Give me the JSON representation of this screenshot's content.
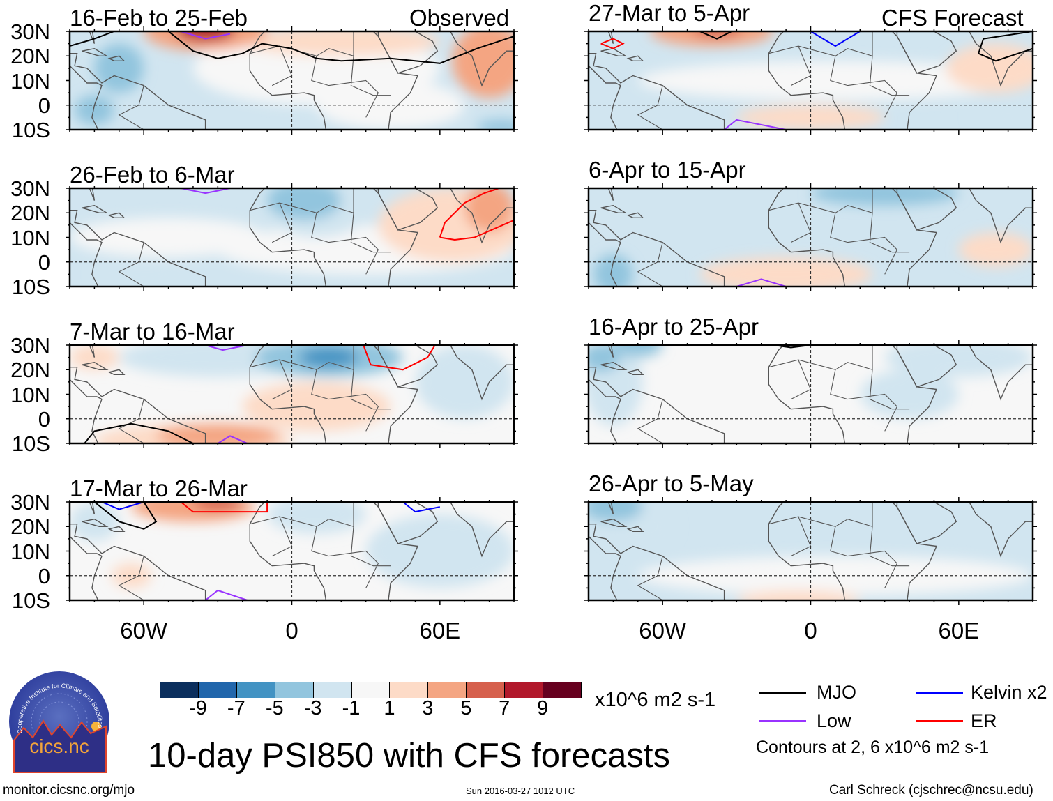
{
  "header": {
    "observed_label": "Observed",
    "forecast_label": "CFS Forecast"
  },
  "axes": {
    "lat_labels": [
      "30N",
      "20N",
      "10N",
      "0",
      "10S"
    ],
    "lon_labels": [
      "60W",
      "0",
      "60E"
    ]
  },
  "palette": [
    "#0b2f5e",
    "#2166ac",
    "#4393c3",
    "#92c5de",
    "#d1e5f0",
    "#f7f7f7",
    "#fddbc7",
    "#f4a582",
    "#d6604d",
    "#b2182b",
    "#67001f"
  ],
  "contour_colors": {
    "MJO": "#000000",
    "Kelvin": "#0000ff",
    "Low": "#9933ff",
    "ER": "#ff0000"
  },
  "maps": [
    {
      "title": "16-Feb to 25-Feb",
      "base": -2,
      "blobs": [
        [
          10,
          15,
          50,
          15,
          0
        ],
        [
          40,
          0,
          30,
          10,
          0
        ],
        [
          20,
          26,
          40,
          6,
          2
        ],
        [
          80,
          18,
          15,
          15,
          4
        ],
        [
          -35,
          30,
          25,
          8,
          4
        ],
        [
          -35,
          31,
          12,
          5,
          8
        ],
        [
          -70,
          15,
          10,
          10,
          -4
        ],
        [
          85,
          -9,
          10,
          3,
          -5
        ],
        [
          -80,
          -2,
          8,
          6,
          -4
        ]
      ],
      "contours": [
        [
          "MJO",
          [
            [
              -90,
              24
            ],
            [
              -80,
              27
            ],
            [
              -72,
              30
            ]
          ]
        ],
        [
          "MJO",
          [
            [
              -50,
              30
            ],
            [
              -40,
              22
            ],
            [
              -30,
              19
            ],
            [
              -20,
              21
            ],
            [
              -12,
              25
            ],
            [
              0,
              23
            ],
            [
              10,
              19
            ],
            [
              20,
              18
            ],
            [
              40,
              19
            ],
            [
              60,
              17
            ],
            [
              75,
              23
            ],
            [
              90,
              28
            ]
          ]
        ],
        [
          "Low",
          [
            [
              -45,
              30
            ],
            [
              -35,
              27
            ],
            [
              -25,
              29
            ]
          ]
        ]
      ]
    },
    {
      "title": "26-Feb to 6-Mar",
      "base": -2,
      "blobs": [
        [
          30,
          5,
          60,
          10,
          0
        ],
        [
          -50,
          10,
          40,
          8,
          0
        ],
        [
          5,
          25,
          15,
          8,
          -5
        ],
        [
          10,
          20,
          20,
          10,
          -3
        ],
        [
          65,
          15,
          30,
          15,
          2
        ],
        [
          80,
          22,
          10,
          10,
          4
        ],
        [
          -60,
          -5,
          20,
          6,
          -3
        ]
      ],
      "contours": [
        [
          "Low",
          [
            [
              -45,
              30
            ],
            [
              -35,
              28
            ],
            [
              -25,
              30
            ]
          ]
        ],
        [
          "ER",
          [
            [
              60,
              10
            ],
            [
              62,
              16
            ],
            [
              70,
              24
            ],
            [
              78,
              28
            ],
            [
              84,
              30
            ]
          ]
        ],
        [
          "ER",
          [
            [
              60,
              10
            ],
            [
              66,
              9
            ],
            [
              74,
              10
            ],
            [
              90,
              17
            ]
          ]
        ]
      ]
    },
    {
      "title": "7-Mar to 16-Mar",
      "base": 0,
      "blobs": [
        [
          -30,
          25,
          40,
          8,
          -3
        ],
        [
          15,
          25,
          30,
          8,
          -4
        ],
        [
          15,
          25,
          12,
          4,
          -7
        ],
        [
          -40,
          -9,
          40,
          7,
          2
        ],
        [
          -30,
          -7,
          25,
          5,
          4
        ],
        [
          10,
          5,
          30,
          10,
          2
        ],
        [
          70,
          15,
          20,
          15,
          -2
        ],
        [
          -80,
          25,
          10,
          5,
          2
        ]
      ],
      "contours": [
        [
          "Low",
          [
            [
              -35,
              30
            ],
            [
              -28,
              28
            ],
            [
              -18,
              30
            ]
          ]
        ],
        [
          "ER",
          [
            [
              29,
              30
            ],
            [
              32,
              22
            ],
            [
              45,
              20
            ],
            [
              55,
              25
            ],
            [
              58,
              30
            ]
          ]
        ],
        [
          "MJO",
          [
            [
              -84,
              -10
            ],
            [
              -80,
              -5
            ],
            [
              -65,
              -2
            ],
            [
              -50,
              -5
            ],
            [
              -40,
              -10
            ]
          ]
        ],
        [
          "Low",
          [
            [
              -30,
              -10
            ],
            [
              -25,
              -7
            ],
            [
              -18,
              -10
            ]
          ]
        ]
      ]
    },
    {
      "title": "17-Mar to 26-Mar",
      "base": 0,
      "blobs": [
        [
          -40,
          28,
          25,
          6,
          4
        ],
        [
          -30,
          30,
          10,
          3,
          6
        ],
        [
          10,
          25,
          20,
          8,
          -3
        ],
        [
          60,
          10,
          30,
          15,
          -2
        ],
        [
          -65,
          0,
          8,
          5,
          2
        ],
        [
          -80,
          22,
          10,
          8,
          -2
        ]
      ],
      "contours": [
        [
          "Kelvin",
          [
            [
              -77,
              30
            ],
            [
              -70,
              27
            ],
            [
              -60,
              30
            ]
          ]
        ],
        [
          "MJO",
          [
            [
              -80,
              30
            ],
            [
              -70,
              22
            ],
            [
              -60,
              19
            ],
            [
              -55,
              22
            ],
            [
              -60,
              30
            ]
          ]
        ],
        [
          "ER",
          [
            [
              -45,
              30
            ],
            [
              -40,
              26
            ],
            [
              -10,
              26
            ],
            [
              -10,
              30
            ]
          ]
        ],
        [
          "Kelvin",
          [
            [
              45,
              30
            ],
            [
              50,
              26
            ],
            [
              60,
              28
            ]
          ]
        ],
        [
          "Low",
          [
            [
              -35,
              -10
            ],
            [
              -30,
              -6
            ],
            [
              -18,
              -10
            ]
          ]
        ]
      ]
    },
    {
      "title": "27-Mar to 5-Apr",
      "base": -2,
      "blobs": [
        [
          10,
          10,
          80,
          8,
          0
        ],
        [
          -40,
          30,
          25,
          6,
          4
        ],
        [
          -38,
          31,
          10,
          3,
          6
        ],
        [
          75,
          15,
          20,
          10,
          2
        ],
        [
          0,
          -5,
          30,
          5,
          2
        ],
        [
          80,
          -5,
          15,
          3,
          -3
        ]
      ],
      "contours": [
        [
          "ER",
          [
            [
              -85,
              25
            ],
            [
              -80,
              27
            ],
            [
              -76,
              25
            ],
            [
              -80,
              23
            ],
            [
              -85,
              25
            ]
          ]
        ],
        [
          "MJO",
          [
            [
              -45,
              30
            ],
            [
              -38,
              27
            ],
            [
              -32,
              30
            ]
          ]
        ],
        [
          "Kelvin",
          [
            [
              0,
              30
            ],
            [
              10,
              24
            ],
            [
              20,
              30
            ]
          ]
        ],
        [
          "MJO",
          [
            [
              90,
              30
            ],
            [
              70,
              27
            ],
            [
              68,
              21
            ],
            [
              75,
              18
            ],
            [
              90,
              23
            ]
          ]
        ],
        [
          "Low",
          [
            [
              -35,
              -10
            ],
            [
              -30,
              -6
            ],
            [
              -10,
              -10
            ]
          ]
        ]
      ]
    },
    {
      "title": "6-Apr to 15-Apr",
      "base": -2,
      "blobs": [
        [
          30,
          28,
          30,
          5,
          -4
        ],
        [
          -10,
          -5,
          35,
          7,
          2
        ],
        [
          75,
          5,
          15,
          7,
          2
        ],
        [
          -80,
          -5,
          8,
          8,
          -4
        ]
      ],
      "contours": [
        [
          "Low",
          [
            [
              -30,
              -10
            ],
            [
              -20,
              -7
            ],
            [
              -10,
              -10
            ]
          ]
        ]
      ]
    },
    {
      "title": "16-Apr to 25-Apr",
      "base": 0,
      "blobs": [
        [
          -80,
          15,
          12,
          18,
          -3
        ],
        [
          60,
          25,
          30,
          8,
          -3
        ],
        [
          -70,
          30,
          10,
          5,
          -4
        ],
        [
          40,
          10,
          20,
          10,
          -2
        ],
        [
          -85,
          25,
          8,
          6,
          -4
        ]
      ],
      "contours": [
        [
          "MJO",
          [
            [
              -15,
              30
            ],
            [
              -8,
              29
            ],
            [
              0,
              30
            ]
          ]
        ]
      ]
    },
    {
      "title": "26-Apr to 5-May",
      "base": -2,
      "blobs": [
        [
          10,
          0,
          80,
          8,
          0
        ],
        [
          -80,
          28,
          12,
          6,
          -5
        ],
        [
          -70,
          20,
          15,
          10,
          -3
        ],
        [
          -5,
          -10,
          25,
          4,
          2
        ]
      ],
      "contours": []
    }
  ],
  "colorbar": {
    "ticks": [
      "-9",
      "-7",
      "-5",
      "-3",
      "-1",
      "1",
      "3",
      "5",
      "7",
      "9"
    ],
    "units": "x10^6 m2 s-1"
  },
  "legend": {
    "items": [
      {
        "key": "MJO",
        "label": "MJO"
      },
      {
        "key": "Low",
        "label": "Low"
      },
      {
        "key": "Kelvin",
        "label": "Kelvin x2"
      },
      {
        "key": "ER",
        "label": "ER"
      }
    ],
    "note": "Contours at 2, 6 x10^6 m2 s-1"
  },
  "footer": {
    "main_title": "10-day PSI850 with CFS forecasts",
    "url": "monitor.cicsnc.org/mjo",
    "timestamp": "Sun 2016-03-27 1012 UTC",
    "author": "Carl Schreck (cjschrec@ncsu.edu)"
  },
  "logo": {
    "text": "cics.nc",
    "ring_text": "Cooperative Institute for Climate and Satellites"
  }
}
